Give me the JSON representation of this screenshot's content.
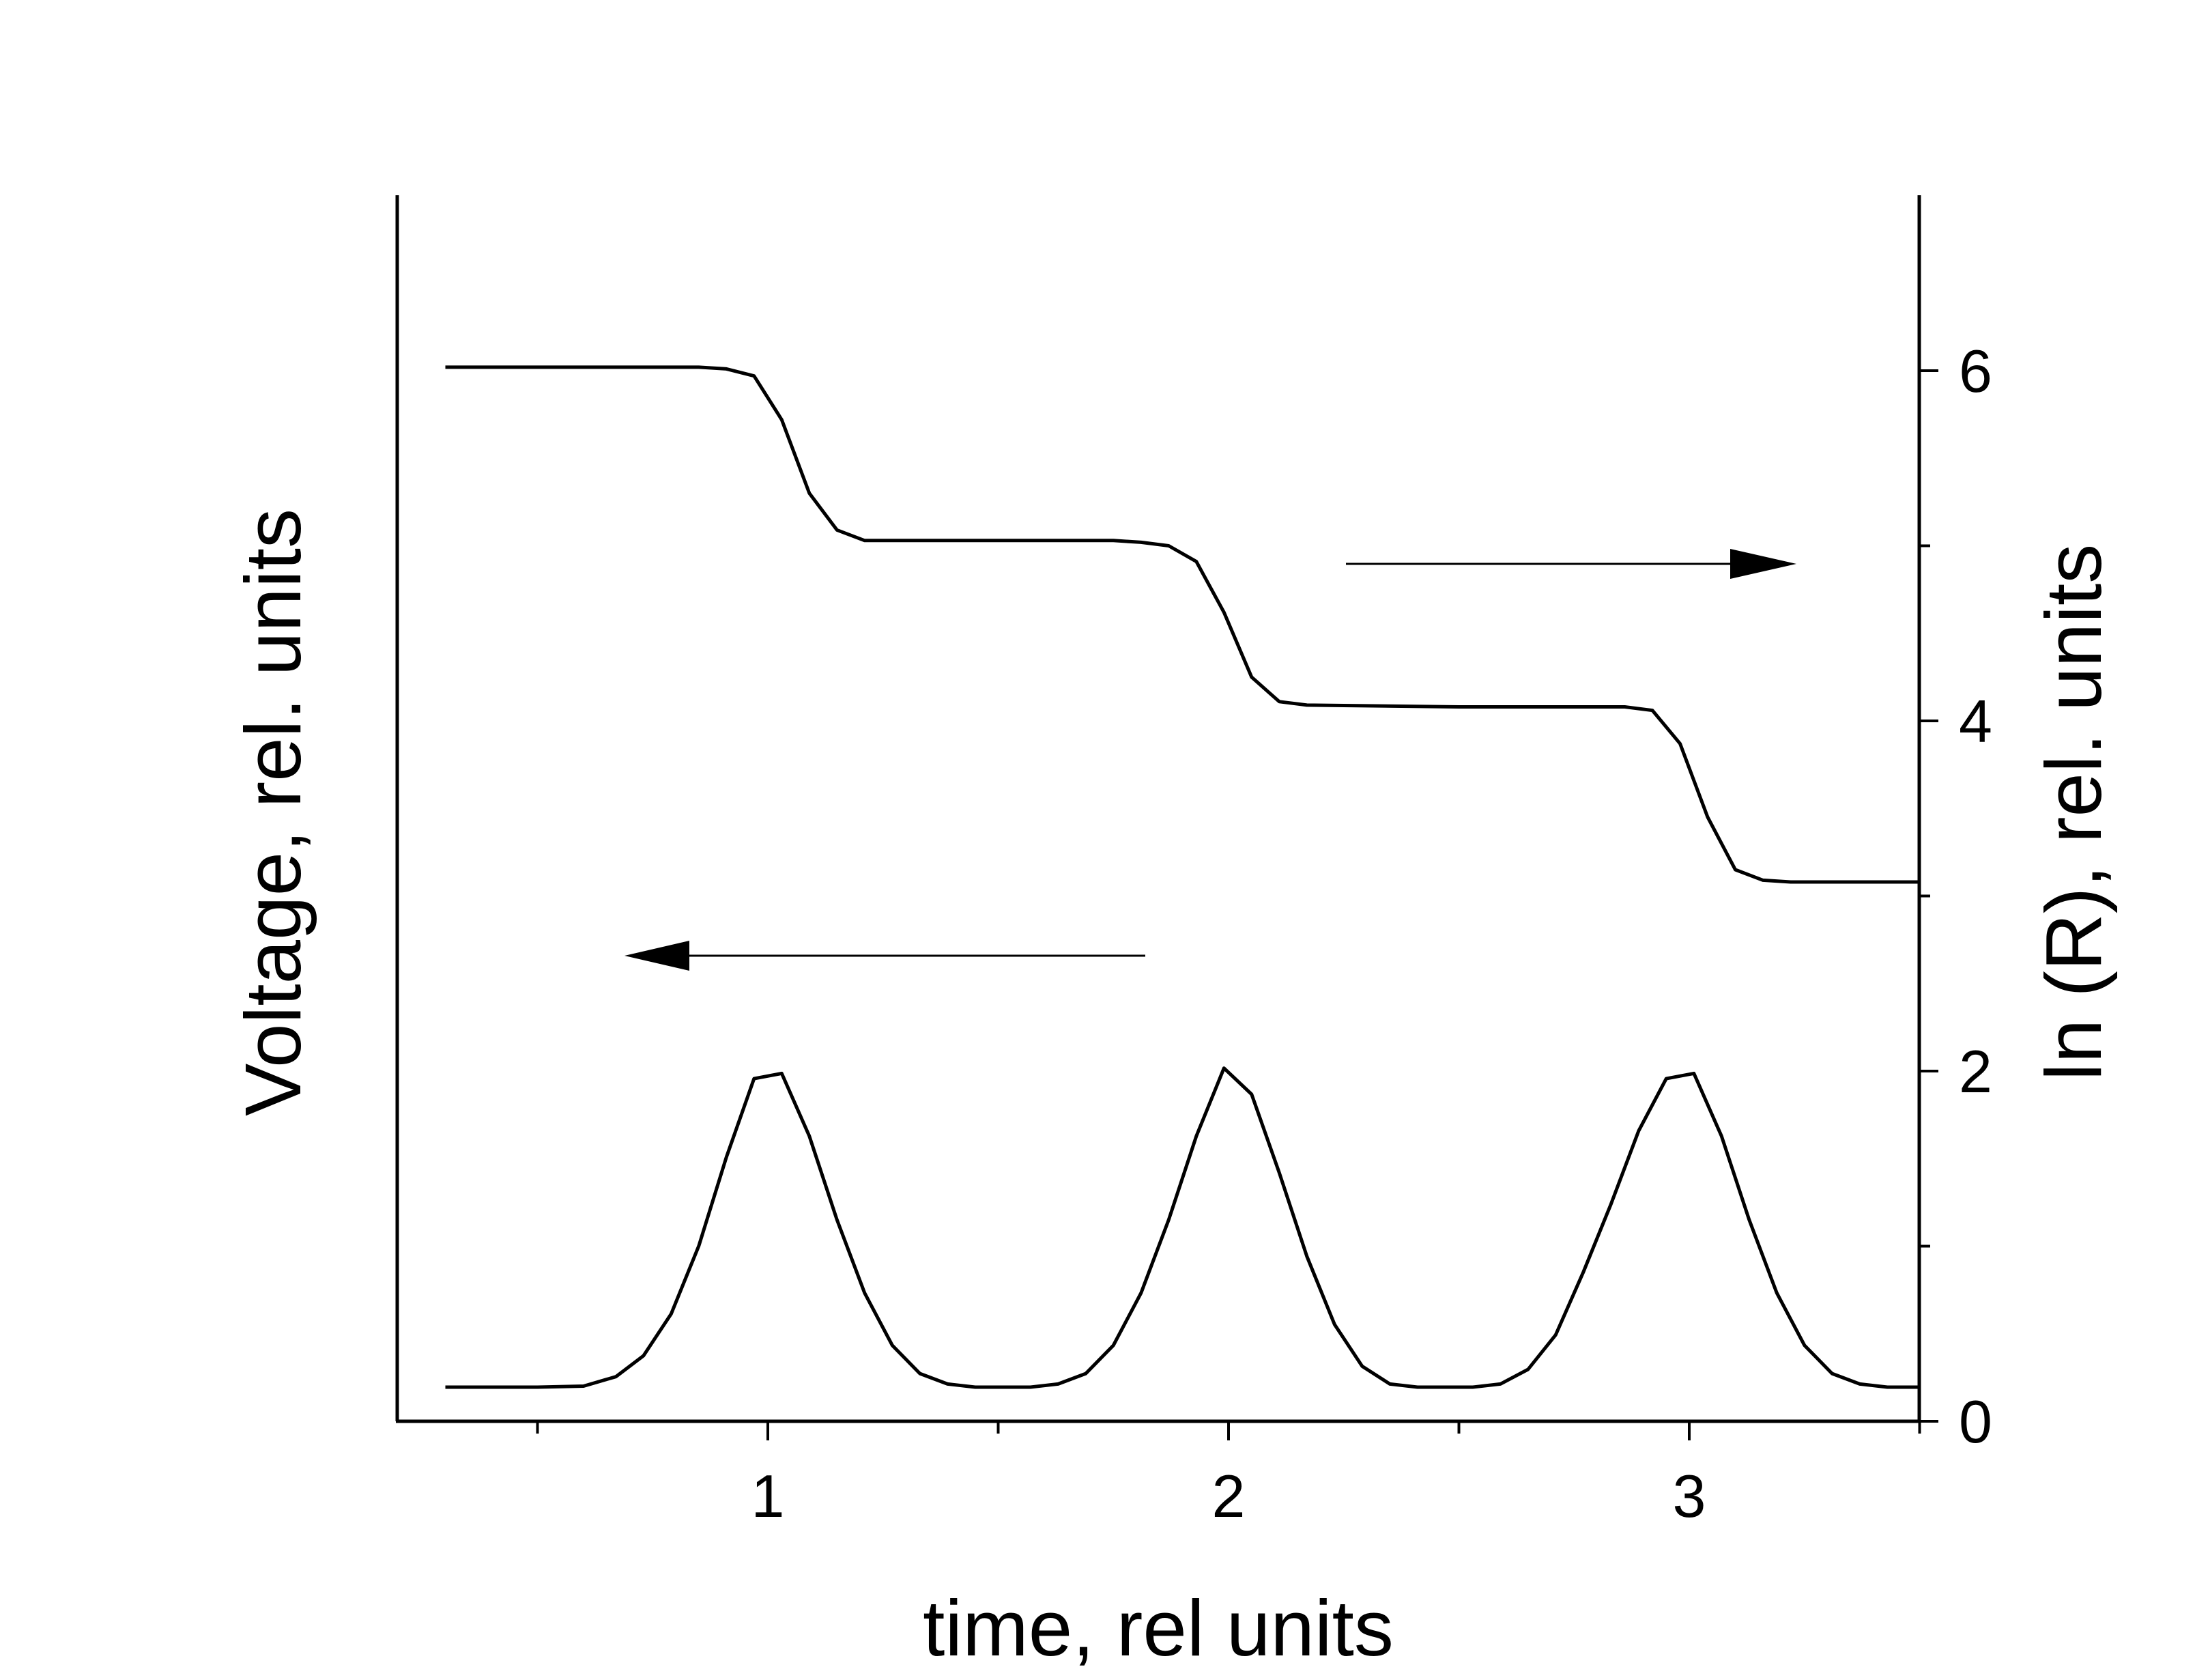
{
  "chart_data": {
    "type": "line",
    "xlabel": "time, rel units",
    "ylabel_left": "Voltage, rel. units",
    "ylabel_right": "ln (R), rel. units",
    "xlim": [
      0.2,
      3.5
    ],
    "x_ticks": [
      1,
      2,
      3
    ],
    "x_minor_ticks": [
      0.5,
      1.5,
      2.5,
      3.5
    ],
    "y_right_lim": [
      0,
      7
    ],
    "y_right_ticks": [
      0,
      2,
      4,
      6
    ],
    "grid": false,
    "series": [
      {
        "axis": "left",
        "x": [
          0.3,
          0.5,
          0.6,
          0.67,
          0.73,
          0.79,
          0.85,
          0.91,
          0.97,
          1.03,
          1.09,
          1.15,
          1.21,
          1.27,
          1.33,
          1.39,
          1.45,
          1.5,
          1.57,
          1.63,
          1.69,
          1.75,
          1.81,
          1.87,
          1.93,
          1.99,
          2.05,
          2.11,
          2.17,
          2.23,
          2.29,
          2.35,
          2.41,
          2.47,
          2.53,
          2.59,
          2.65,
          2.71,
          2.77,
          2.83,
          2.89,
          2.95,
          3.01,
          3.07,
          3.13,
          3.19,
          3.25,
          3.31,
          3.37,
          3.43,
          3.5
        ],
        "y": [
          0.15,
          0.15,
          0.16,
          0.25,
          0.45,
          0.85,
          1.5,
          2.35,
          3.1,
          3.15,
          2.55,
          1.75,
          1.05,
          0.55,
          0.28,
          0.18,
          0.15,
          0.15,
          0.15,
          0.18,
          0.28,
          0.55,
          1.05,
          1.75,
          2.55,
          3.2,
          2.95,
          2.2,
          1.4,
          0.75,
          0.35,
          0.18,
          0.15,
          0.15,
          0.15,
          0.18,
          0.32,
          0.65,
          1.25,
          1.9,
          2.6,
          3.1,
          3.15,
          2.55,
          1.75,
          1.05,
          0.55,
          0.28,
          0.18,
          0.15,
          0.15
        ]
      },
      {
        "axis": "right",
        "x": [
          0.3,
          0.6,
          0.85,
          0.91,
          0.97,
          1.03,
          1.09,
          1.15,
          1.21,
          1.5,
          1.75,
          1.81,
          1.87,
          1.93,
          1.99,
          2.05,
          2.11,
          2.17,
          2.5,
          2.8,
          2.86,
          2.92,
          2.98,
          3.04,
          3.1,
          3.16,
          3.22,
          3.5
        ],
        "y": [
          6.02,
          6.02,
          6.02,
          6.01,
          5.97,
          5.72,
          5.3,
          5.09,
          5.03,
          5.03,
          5.03,
          5.02,
          5.0,
          4.91,
          4.62,
          4.25,
          4.11,
          4.09,
          4.08,
          4.08,
          4.08,
          4.06,
          3.87,
          3.45,
          3.15,
          3.09,
          3.08,
          3.08
        ]
      }
    ],
    "annotations": [
      {
        "type": "arrow",
        "direction": "left",
        "indicates": "left axis"
      },
      {
        "type": "arrow",
        "direction": "right",
        "indicates": "right axis"
      }
    ]
  }
}
